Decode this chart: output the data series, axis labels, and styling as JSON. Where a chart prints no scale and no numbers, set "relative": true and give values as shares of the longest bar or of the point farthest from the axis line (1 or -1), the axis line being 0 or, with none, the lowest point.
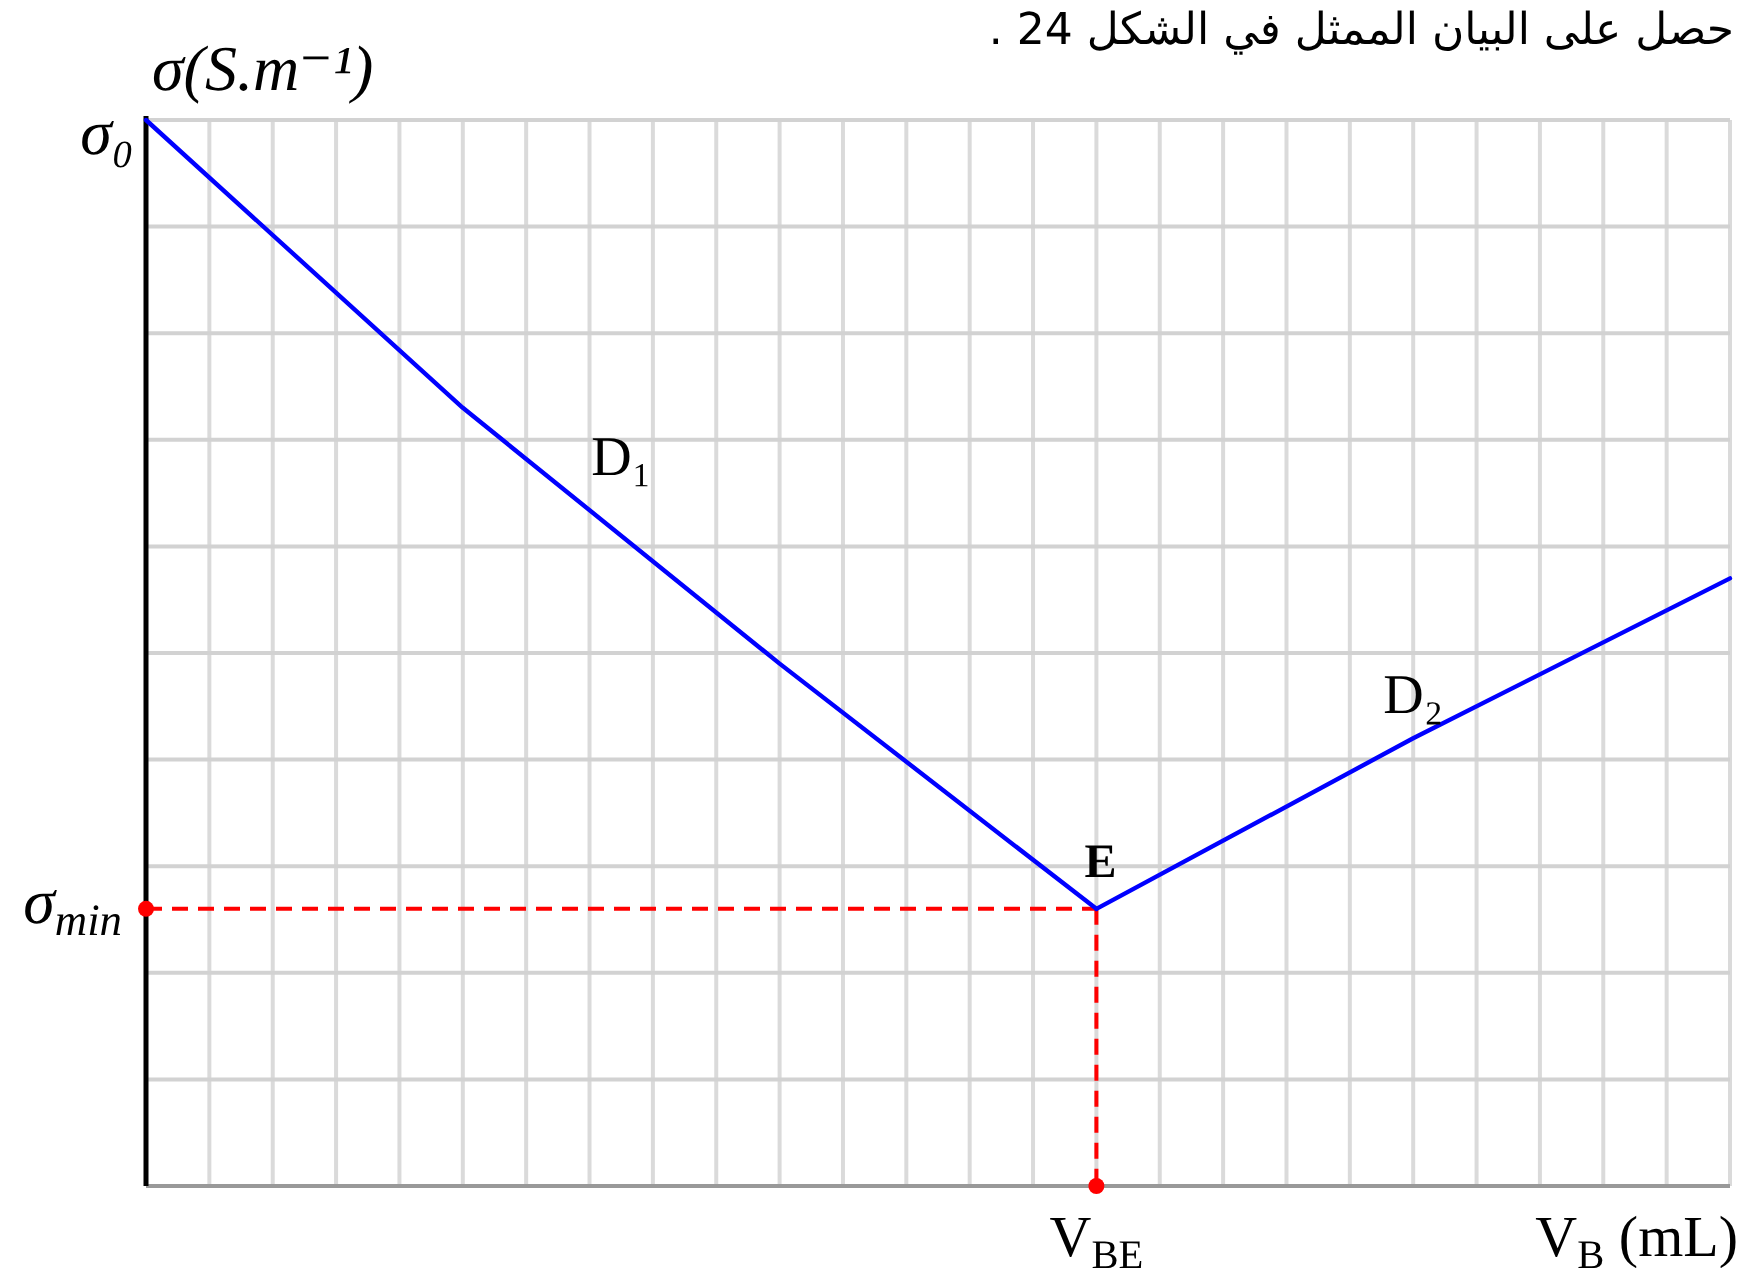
{
  "chart_data": {
    "type": "line",
    "relative": true,
    "ylabel": "σ(S.m⁻¹)",
    "xlabel": "V$_{B}$ (mL)",
    "categories": [
      null,
      null,
      null,
      null,
      null,
      null
    ],
    "series": [
      {
        "name": "D₁",
        "color": "#0000ff",
        "values": [
          1,
          0.73,
          0.49,
          0.26,
          null,
          null
        ]
      },
      {
        "name": "D₂",
        "color": "#0000ff",
        "values": [
          null,
          null,
          null,
          0.26,
          0.42,
          0.57
        ]
      }
    ],
    "ref_lines": [
      {
        "axis": "y",
        "value": 0.26,
        "label": "σ$_{min}$",
        "color": "#ff0000",
        "line_style": "dashed"
      }
    ],
    "annotations": [
      "حصل على البيان الممثل في الشكل 24 .",
      "σ₀",
      {
        "text": "E",
        "y": 0.26
      },
      "V$_{BE}$"
    ],
    "grid": true
  }
}
